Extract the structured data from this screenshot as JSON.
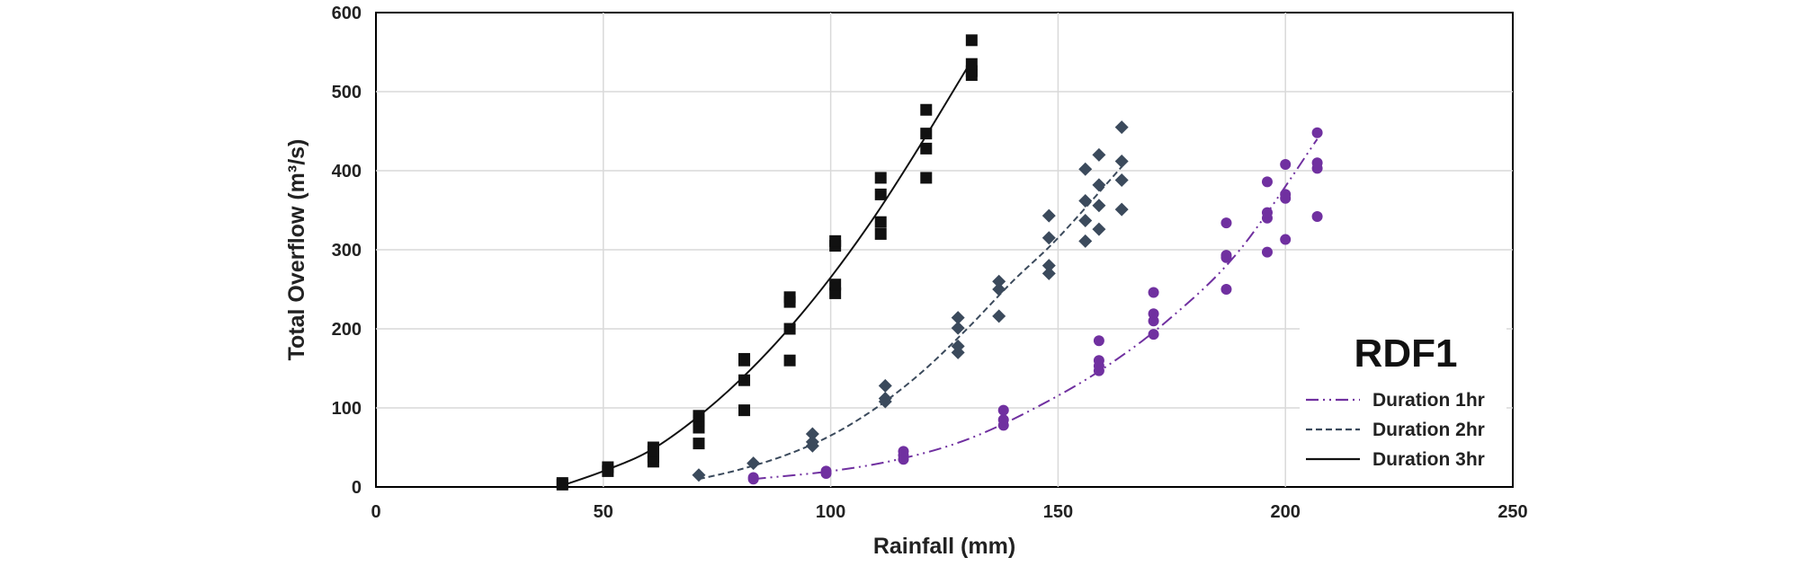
{
  "chart_data": {
    "type": "scatter",
    "title": "",
    "xlabel": "Rainfall (mm)",
    "ylabel": "Total Overflow (m³/s)",
    "xlim": [
      0,
      250
    ],
    "ylim": [
      0,
      600
    ],
    "xticks": [
      0,
      50,
      100,
      150,
      200,
      250
    ],
    "yticks": [
      0,
      100,
      200,
      300,
      400,
      500,
      600
    ],
    "grid": true,
    "legend": {
      "title": "RDF1",
      "position": "bottom-right"
    },
    "series": [
      {
        "name": "Duration 1hr",
        "marker": "circle",
        "color": "#7030a0",
        "line_style": "dash-dot-dot",
        "points": [
          [
            83,
            10
          ],
          [
            83,
            12
          ],
          [
            99,
            17
          ],
          [
            99,
            20
          ],
          [
            116,
            35
          ],
          [
            116,
            40
          ],
          [
            116,
            45
          ],
          [
            138,
            78
          ],
          [
            138,
            85
          ],
          [
            138,
            97
          ],
          [
            159,
            147
          ],
          [
            159,
            153
          ],
          [
            159,
            160
          ],
          [
            159,
            185
          ],
          [
            171,
            193
          ],
          [
            171,
            210
          ],
          [
            171,
            219
          ],
          [
            171,
            246
          ],
          [
            187,
            250
          ],
          [
            187,
            290
          ],
          [
            187,
            293
          ],
          [
            187,
            334
          ],
          [
            196,
            297
          ],
          [
            196,
            340
          ],
          [
            196,
            347
          ],
          [
            196,
            386
          ],
          [
            200,
            313
          ],
          [
            200,
            365
          ],
          [
            200,
            370
          ],
          [
            200,
            408
          ],
          [
            207,
            342
          ],
          [
            207,
            403
          ],
          [
            207,
            410
          ],
          [
            207,
            448
          ]
        ],
        "trend": [
          [
            83,
            10
          ],
          [
            100,
            20
          ],
          [
            115,
            35
          ],
          [
            130,
            60
          ],
          [
            145,
            100
          ],
          [
            160,
            150
          ],
          [
            175,
            215
          ],
          [
            190,
            300
          ],
          [
            207,
            440
          ]
        ]
      },
      {
        "name": "Duration 2hr",
        "marker": "diamond",
        "color": "#3b4a5c",
        "line_style": "dashed",
        "points": [
          [
            71,
            15
          ],
          [
            83,
            30
          ],
          [
            96,
            52
          ],
          [
            96,
            57
          ],
          [
            96,
            67
          ],
          [
            112,
            108
          ],
          [
            112,
            112
          ],
          [
            112,
            128
          ],
          [
            128,
            170
          ],
          [
            128,
            178
          ],
          [
            128,
            201
          ],
          [
            128,
            214
          ],
          [
            137,
            216
          ],
          [
            137,
            250
          ],
          [
            137,
            260
          ],
          [
            148,
            270
          ],
          [
            148,
            280
          ],
          [
            148,
            315
          ],
          [
            148,
            343
          ],
          [
            156,
            311
          ],
          [
            156,
            337
          ],
          [
            156,
            362
          ],
          [
            156,
            402
          ],
          [
            159,
            326
          ],
          [
            159,
            356
          ],
          [
            159,
            382
          ],
          [
            159,
            420
          ],
          [
            164,
            351
          ],
          [
            164,
            388
          ],
          [
            164,
            412
          ],
          [
            164,
            455
          ]
        ],
        "trend": [
          [
            71,
            10
          ],
          [
            80,
            22
          ],
          [
            90,
            40
          ],
          [
            100,
            65
          ],
          [
            110,
            100
          ],
          [
            120,
            145
          ],
          [
            130,
            200
          ],
          [
            140,
            260
          ],
          [
            150,
            315
          ],
          [
            164,
            405
          ]
        ]
      },
      {
        "name": "Duration 3hr",
        "marker": "square",
        "color": "#111111",
        "line_style": "solid",
        "points": [
          [
            41,
            3
          ],
          [
            41,
            5
          ],
          [
            51,
            20
          ],
          [
            51,
            25
          ],
          [
            61,
            32
          ],
          [
            61,
            38
          ],
          [
            61,
            45
          ],
          [
            61,
            50
          ],
          [
            71,
            55
          ],
          [
            71,
            75
          ],
          [
            71,
            84
          ],
          [
            71,
            90
          ],
          [
            81,
            97
          ],
          [
            81,
            135
          ],
          [
            81,
            160
          ],
          [
            81,
            162
          ],
          [
            91,
            160
          ],
          [
            91,
            200
          ],
          [
            91,
            234
          ],
          [
            91,
            240
          ],
          [
            101,
            245
          ],
          [
            101,
            256
          ],
          [
            101,
            305
          ],
          [
            101,
            311
          ],
          [
            111,
            320
          ],
          [
            111,
            335
          ],
          [
            111,
            370
          ],
          [
            111,
            391
          ],
          [
            121,
            391
          ],
          [
            121,
            428
          ],
          [
            121,
            447
          ],
          [
            121,
            477
          ],
          [
            131,
            521
          ],
          [
            131,
            526
          ],
          [
            131,
            535
          ],
          [
            131,
            565
          ]
        ],
        "trend": [
          [
            40,
            0
          ],
          [
            50,
            20
          ],
          [
            60,
            45
          ],
          [
            70,
            85
          ],
          [
            80,
            135
          ],
          [
            90,
            195
          ],
          [
            100,
            265
          ],
          [
            110,
            345
          ],
          [
            120,
            435
          ],
          [
            130,
            530
          ]
        ]
      }
    ]
  }
}
